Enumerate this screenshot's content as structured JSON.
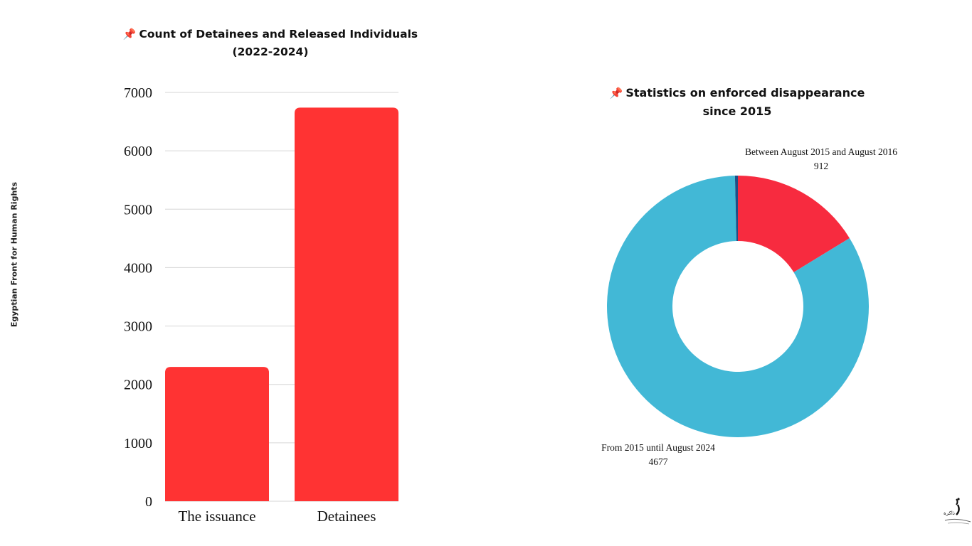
{
  "side_label": "Egyptian Front for Human Rights",
  "logo_text": "ذاكرة",
  "colors": {
    "bar": "#ff3333",
    "grid": "#d6d6d6",
    "slice_red": "#f72b3f",
    "slice_blue": "#42b8d6",
    "slice_dark": "#1f4f86"
  },
  "chart_data": [
    {
      "type": "bar",
      "title_pin": "📌",
      "title": "Count of Detainees and Released Individuals",
      "subtitle": "(2022-2024)",
      "categories": [
        "The issuance",
        "Detainees"
      ],
      "values": [
        2300,
        6740
      ],
      "ylim": [
        0,
        7000
      ],
      "yticks": [
        "0",
        "1000",
        "2000",
        "3000",
        "4000",
        "5000",
        "6000",
        "7000"
      ],
      "grid": true
    },
    {
      "type": "pie",
      "title_pin": "📌",
      "title": "Statistics on enforced disappearance",
      "subtitle": "since 2015",
      "donut": true,
      "slices": [
        {
          "label": "Between August 2015 and August 2016",
          "value": 912,
          "value_label": "912",
          "color": "#f72b3f"
        },
        {
          "label": "From 2015 until August 2024",
          "value": 4677,
          "value_label": "4677",
          "color": "#42b8d6"
        },
        {
          "label": "",
          "value": 20,
          "value_label": "",
          "color": "#1f4f86"
        }
      ]
    }
  ]
}
